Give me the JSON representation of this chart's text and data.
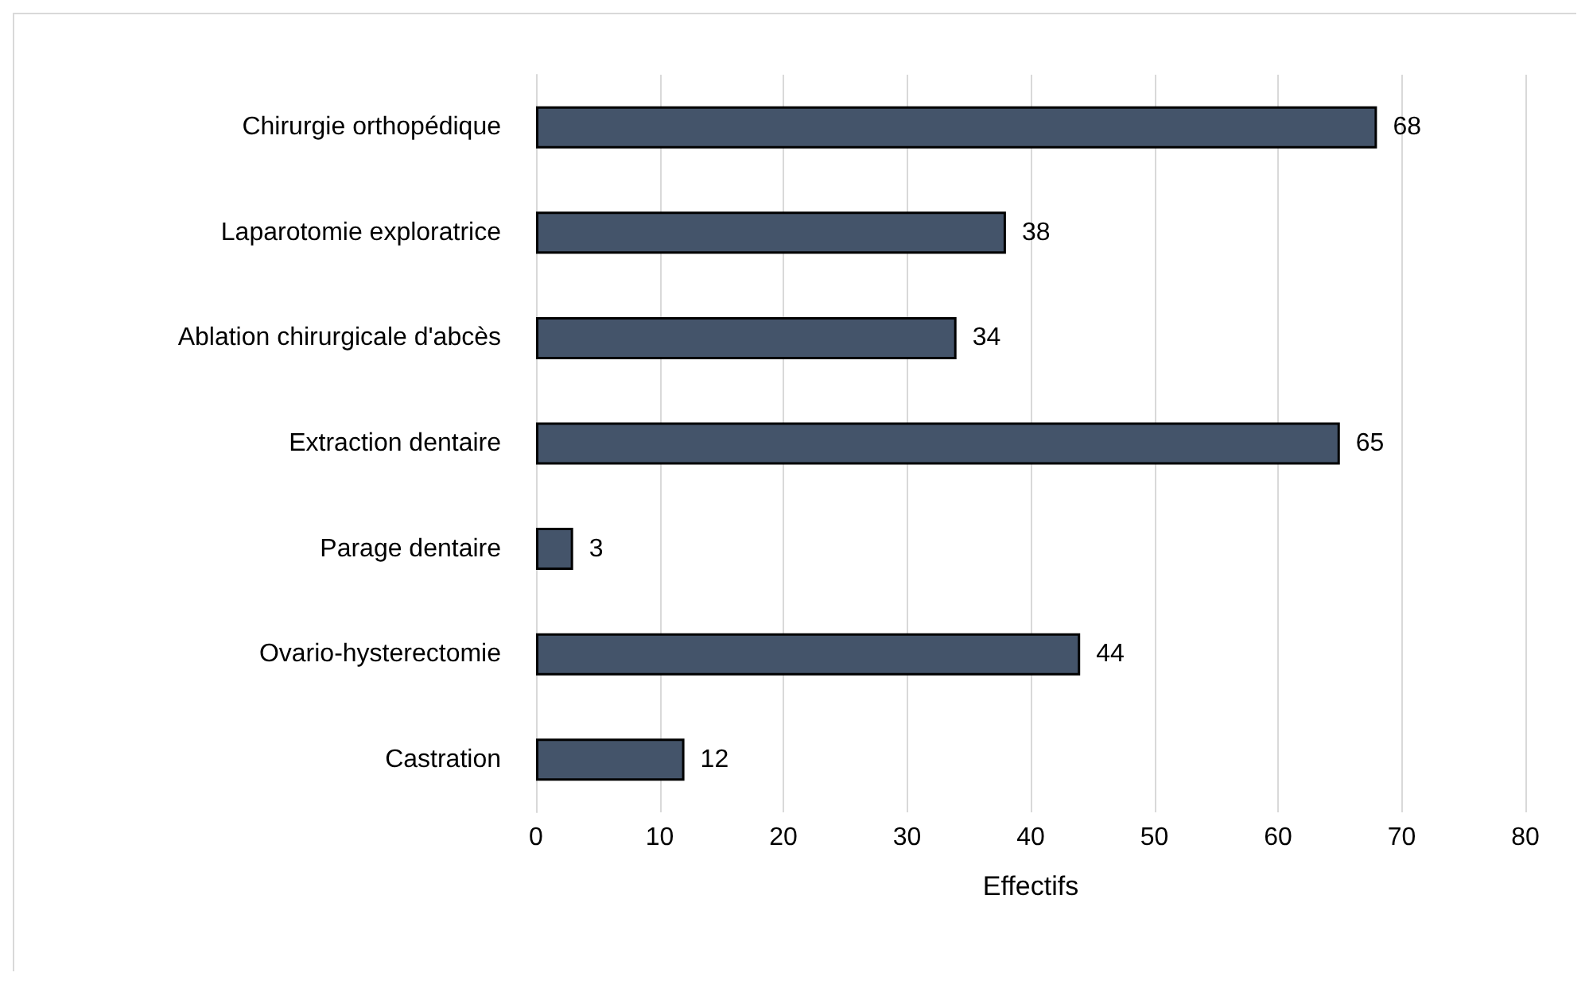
{
  "chart_data": {
    "type": "bar",
    "orientation": "horizontal",
    "xlabel": "Effectifs",
    "categories": [
      "Chirurgie orthopédique",
      "Laparotomie exploratrice",
      "Ablation chirurgicale d'abcès",
      "Extraction dentaire",
      "Parage dentaire",
      "Ovario-hysterectomie",
      "Castration"
    ],
    "values": [
      68,
      38,
      34,
      65,
      3,
      44,
      12
    ],
    "color": "#44546a",
    "xlim": [
      0,
      80
    ],
    "xticks": [
      0,
      10,
      20,
      30,
      40,
      50,
      60,
      70,
      80
    ],
    "grid": "x",
    "data_labels": true
  }
}
